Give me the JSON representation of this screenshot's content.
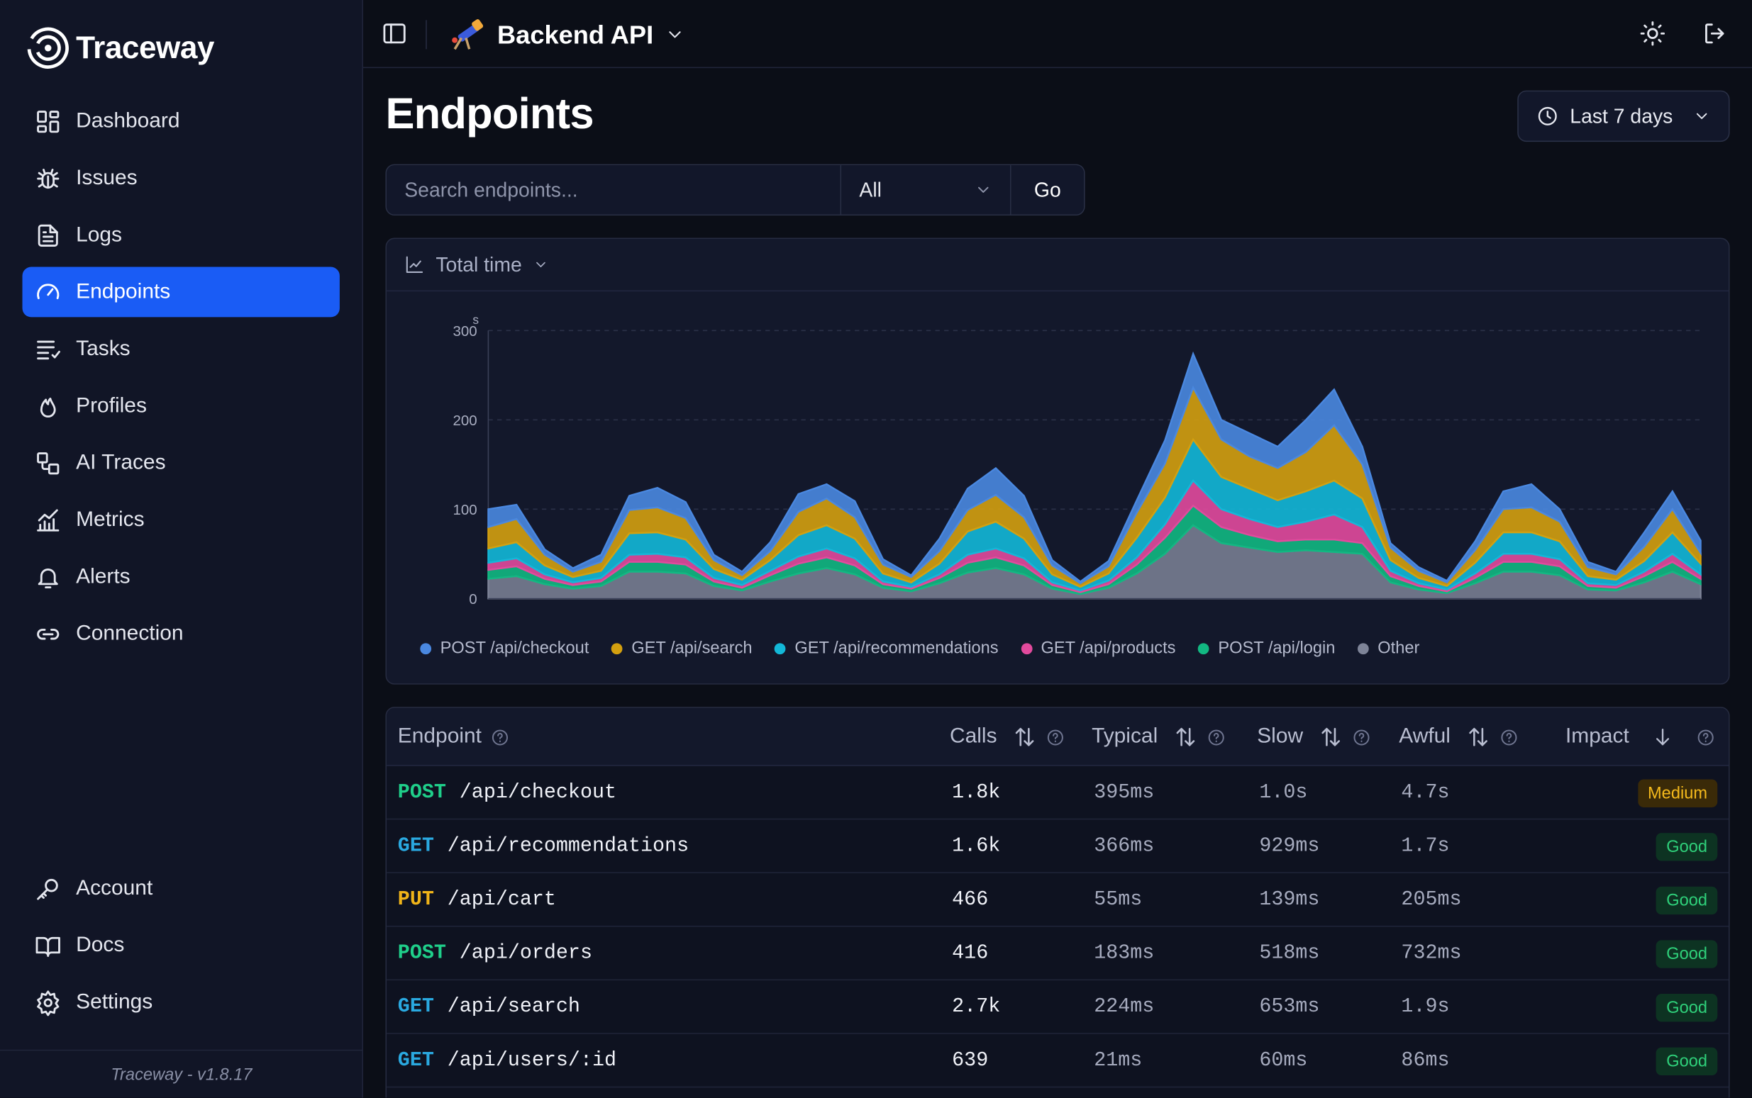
{
  "app": {
    "name": "Traceway",
    "version_label": "Traceway - v1.8.17"
  },
  "sidebar": {
    "items": [
      {
        "label": "Dashboard",
        "icon": "dashboard-icon"
      },
      {
        "label": "Issues",
        "icon": "bug-icon"
      },
      {
        "label": "Logs",
        "icon": "file-text-icon"
      },
      {
        "label": "Endpoints",
        "icon": "gauge-icon",
        "active": true
      },
      {
        "label": "Tasks",
        "icon": "tasks-icon"
      },
      {
        "label": "Profiles",
        "icon": "flame-icon"
      },
      {
        "label": "AI Traces",
        "icon": "workflow-icon"
      },
      {
        "label": "Metrics",
        "icon": "chart-icon"
      },
      {
        "label": "Alerts",
        "icon": "bell-icon"
      },
      {
        "label": "Connection",
        "icon": "link-icon"
      }
    ],
    "bottom_items": [
      {
        "label": "Account",
        "icon": "key-icon"
      },
      {
        "label": "Docs",
        "icon": "book-icon"
      },
      {
        "label": "Settings",
        "icon": "gear-icon"
      }
    ]
  },
  "header": {
    "project_name": "Backend API"
  },
  "page": {
    "title": "Endpoints",
    "time_range": "Last 7 days",
    "search_placeholder": "Search endpoints...",
    "filter_value": "All",
    "go_label": "Go",
    "chart_metric": "Total time"
  },
  "colors": {
    "accent": "#1a5cf5",
    "checkout": "#4a88e0",
    "search": "#d4a00f",
    "recommendations": "#13b8d8",
    "products": "#e24a9d",
    "login": "#12b882",
    "other": "#7e8498"
  },
  "chart_data": {
    "type": "area",
    "stacked": true,
    "ylabel": "s",
    "yticks": [
      0,
      100,
      200,
      300
    ],
    "ylim": [
      0,
      300
    ],
    "grid": true,
    "legend_position": "bottom-left",
    "series": [
      {
        "name": "Other",
        "color": "#7e8498",
        "values": [
          22,
          25,
          16,
          11,
          14,
          30,
          30,
          28,
          14,
          9,
          19,
          28,
          34,
          27,
          12,
          8,
          17,
          29,
          34,
          27,
          11,
          5,
          12,
          28,
          50,
          82,
          62,
          57,
          52,
          54,
          52,
          50,
          18,
          10,
          6,
          17,
          30,
          30,
          26,
          10,
          9,
          18,
          30,
          16
        ]
      },
      {
        "name": "POST /api/login",
        "color": "#12b882",
        "values": [
          10,
          11,
          6,
          4,
          5,
          11,
          11,
          10,
          5,
          3,
          7,
          11,
          12,
          10,
          4,
          3,
          6,
          11,
          12,
          10,
          4,
          2,
          4,
          10,
          18,
          22,
          18,
          14,
          12,
          12,
          14,
          12,
          7,
          4,
          2,
          6,
          11,
          11,
          10,
          4,
          3,
          7,
          11,
          6
        ]
      },
      {
        "name": "GET /api/products",
        "color": "#e24a9d",
        "values": [
          8,
          9,
          5,
          3,
          4,
          8,
          9,
          8,
          4,
          3,
          5,
          8,
          10,
          8,
          3,
          2,
          4,
          9,
          10,
          8,
          3,
          2,
          4,
          8,
          15,
          28,
          20,
          18,
          16,
          20,
          28,
          18,
          6,
          3,
          2,
          5,
          9,
          9,
          8,
          3,
          3,
          5,
          9,
          5
        ]
      },
      {
        "name": "GET /api/recommendations",
        "color": "#13b8d8",
        "values": [
          16,
          18,
          10,
          6,
          8,
          24,
          24,
          20,
          10,
          6,
          12,
          24,
          26,
          22,
          9,
          5,
          12,
          26,
          30,
          22,
          9,
          4,
          8,
          22,
          30,
          46,
          36,
          34,
          30,
          34,
          38,
          32,
          12,
          6,
          4,
          12,
          24,
          24,
          20,
          8,
          6,
          12,
          24,
          12
        ]
      },
      {
        "name": "GET /api/search",
        "color": "#d4a00f",
        "values": [
          24,
          26,
          12,
          6,
          10,
          26,
          28,
          24,
          10,
          5,
          10,
          26,
          30,
          24,
          10,
          6,
          14,
          24,
          30,
          24,
          10,
          4,
          8,
          28,
          38,
          58,
          42,
          36,
          36,
          44,
          62,
          38,
          14,
          8,
          4,
          14,
          26,
          28,
          22,
          10,
          6,
          16,
          26,
          12
        ]
      },
      {
        "name": "POST /api/checkout",
        "color": "#4a88e0",
        "values": [
          20,
          16,
          6,
          4,
          8,
          16,
          22,
          18,
          6,
          4,
          10,
          20,
          16,
          18,
          6,
          2,
          14,
          24,
          30,
          24,
          6,
          2,
          6,
          14,
          26,
          38,
          22,
          26,
          24,
          36,
          40,
          20,
          5,
          4,
          2,
          10,
          20,
          26,
          14,
          6,
          3,
          16,
          20,
          14
        ]
      }
    ],
    "x_count": 44
  },
  "table": {
    "columns": [
      {
        "label": "Endpoint",
        "help": true
      },
      {
        "label": "Calls",
        "sortable": true,
        "help": true
      },
      {
        "label": "Typical",
        "sortable": true,
        "help": true
      },
      {
        "label": "Slow",
        "sortable": true,
        "help": true
      },
      {
        "label": "Awful",
        "sortable": true,
        "help": true
      },
      {
        "label": "Impact",
        "sorted": "desc",
        "help": true
      }
    ],
    "rows": [
      {
        "method": "POST",
        "path": "/api/checkout",
        "calls": "1.8k",
        "typical": "395ms",
        "slow": "1.0s",
        "awful": "4.7s",
        "impact": "Medium"
      },
      {
        "method": "GET",
        "path": "/api/recommendations",
        "calls": "1.6k",
        "typical": "366ms",
        "slow": "929ms",
        "awful": "1.7s",
        "impact": "Good"
      },
      {
        "method": "PUT",
        "path": "/api/cart",
        "calls": "466",
        "typical": "55ms",
        "slow": "139ms",
        "awful": "205ms",
        "impact": "Good"
      },
      {
        "method": "POST",
        "path": "/api/orders",
        "calls": "416",
        "typical": "183ms",
        "slow": "518ms",
        "awful": "732ms",
        "impact": "Good"
      },
      {
        "method": "GET",
        "path": "/api/search",
        "calls": "2.7k",
        "typical": "224ms",
        "slow": "653ms",
        "awful": "1.9s",
        "impact": "Good"
      },
      {
        "method": "GET",
        "path": "/api/users/:id",
        "calls": "639",
        "typical": "21ms",
        "slow": "60ms",
        "awful": "86ms",
        "impact": "Good"
      }
    ],
    "method_colors": {
      "GET": "#2aa9e0",
      "POST": "#1fcf8a",
      "PUT": "#f0b419"
    }
  }
}
